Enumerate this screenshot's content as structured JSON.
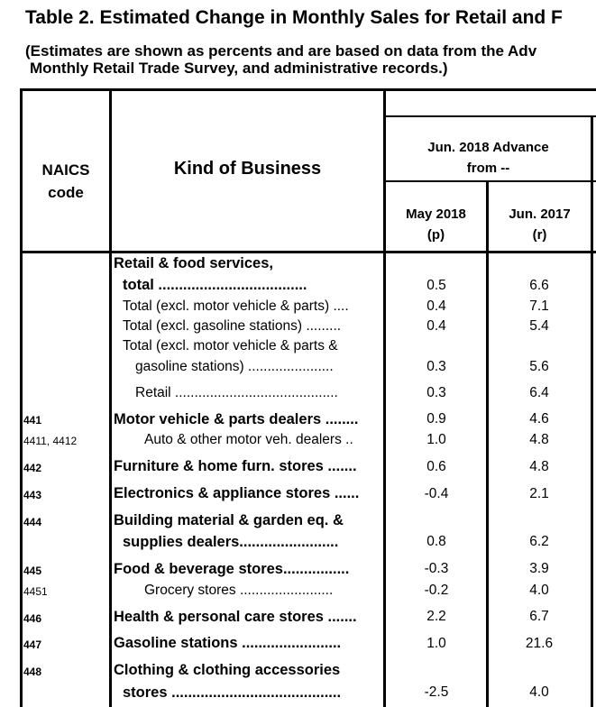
{
  "title": "Table 2.  Estimated Change in Monthly Sales for Retail and F",
  "subtitle_line1": "(Estimates are shown as percents and are based on data from the Adv",
  "subtitle_line2": "Monthly Retail Trade Survey, and administrative records.)",
  "headers": {
    "naics_line1": "NAICS",
    "naics_line2": "code",
    "kind": "Kind of Business",
    "group_line1": "Jun. 2018 Advance",
    "group_line2": "from --",
    "col1_line1": "May 2018",
    "col1_line2": "(p)",
    "col2_line1": "Jun. 2017",
    "col2_line2": "(r)"
  },
  "rows": [
    {
      "code": "",
      "text": "Retail & food services,",
      "c1": "",
      "c2": ""
    },
    {
      "code": "",
      "text": "total ....................................",
      "c1": "0.5",
      "c2": "6.6"
    },
    {
      "code": "",
      "text": "Total (excl. motor vehicle & parts) ....",
      "c1": "0.4",
      "c2": "7.1"
    },
    {
      "code": "",
      "text": "Total (excl. gasoline stations) .........",
      "c1": "0.4",
      "c2": "5.4"
    },
    {
      "code": "",
      "text": "Total (excl. motor vehicle & parts &",
      "c1": "",
      "c2": ""
    },
    {
      "code": "",
      "text": "gasoline stations) ......................",
      "c1": "0.3",
      "c2": "5.6"
    },
    {
      "code": "",
      "text": "Retail ..........................................",
      "c1": "0.3",
      "c2": "6.4"
    },
    {
      "code": "441",
      "text": "Motor vehicle & parts dealers ........",
      "c1": "0.9",
      "c2": "4.6"
    },
    {
      "code": "4411, 4412",
      "text": "Auto & other motor veh. dealers ..",
      "c1": "1.0",
      "c2": "4.8"
    },
    {
      "code": "442",
      "text": "Furniture & home furn. stores .......",
      "c1": "0.6",
      "c2": "4.8"
    },
    {
      "code": "443",
      "text": "Electronics & appliance stores ......",
      "c1": "-0.4",
      "c2": "2.1"
    },
    {
      "code": "444",
      "text": "Building material & garden eq. &",
      "c1": "",
      "c2": ""
    },
    {
      "code": "",
      "text": "supplies dealers........................",
      "c1": "0.8",
      "c2": "6.2"
    },
    {
      "code": "445",
      "text": "Food & beverage stores................",
      "c1": "-0.3",
      "c2": "3.9"
    },
    {
      "code": "4451",
      "text": "Grocery stores ........................",
      "c1": "-0.2",
      "c2": "4.0"
    },
    {
      "code": "446",
      "text": "Health & personal care stores .......",
      "c1": "2.2",
      "c2": "6.7"
    },
    {
      "code": "447",
      "text": "Gasoline stations ........................",
      "c1": "1.0",
      "c2": "21.6"
    },
    {
      "code": "448",
      "text": "Clothing & clothing accessories",
      "c1": "",
      "c2": ""
    },
    {
      "code": "",
      "text": "stores .........................................",
      "c1": "-2.5",
      "c2": "4.0"
    }
  ]
}
